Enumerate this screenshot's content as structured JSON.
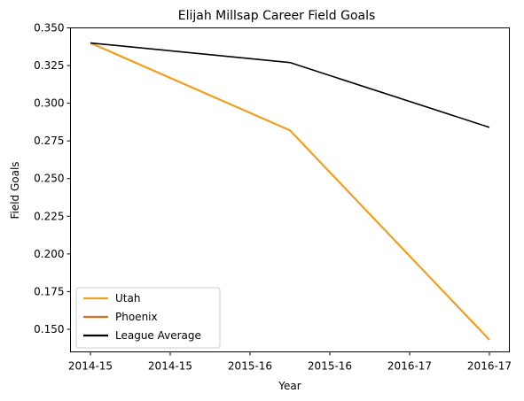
{
  "chart_data": {
    "type": "line",
    "title": "Elijah Millsap Career Field Goals",
    "xlabel": "Year",
    "ylabel": "Field Goals",
    "x_tick_labels": [
      "2014-15",
      "2014-15",
      "2015-16",
      "2015-16",
      "2016-17",
      "2016-17"
    ],
    "ylim": [
      0.135,
      0.35
    ],
    "y_ticks": [
      0.15,
      0.175,
      0.2,
      0.225,
      0.25,
      0.275,
      0.3,
      0.325,
      0.35
    ],
    "y_tick_labels": [
      "0.150",
      "0.175",
      "0.200",
      "0.225",
      "0.250",
      "0.275",
      "0.300",
      "0.325",
      "0.350"
    ],
    "grid": false,
    "legend_position": "lower-left",
    "series": [
      {
        "name": "Utah",
        "color": "#F29E1E",
        "x": [
          "2014-15",
          "2015-16",
          "2016-17"
        ],
        "values": [
          0.34,
          0.282,
          0.143
        ]
      },
      {
        "name": "Phoenix",
        "color": "#E06C1F",
        "x": [],
        "values": []
      },
      {
        "name": "League Average",
        "color": "#000000",
        "x": [
          "2014-15",
          "2015-16",
          "2016-17"
        ],
        "values": [
          0.34,
          0.327,
          0.284
        ]
      }
    ]
  }
}
